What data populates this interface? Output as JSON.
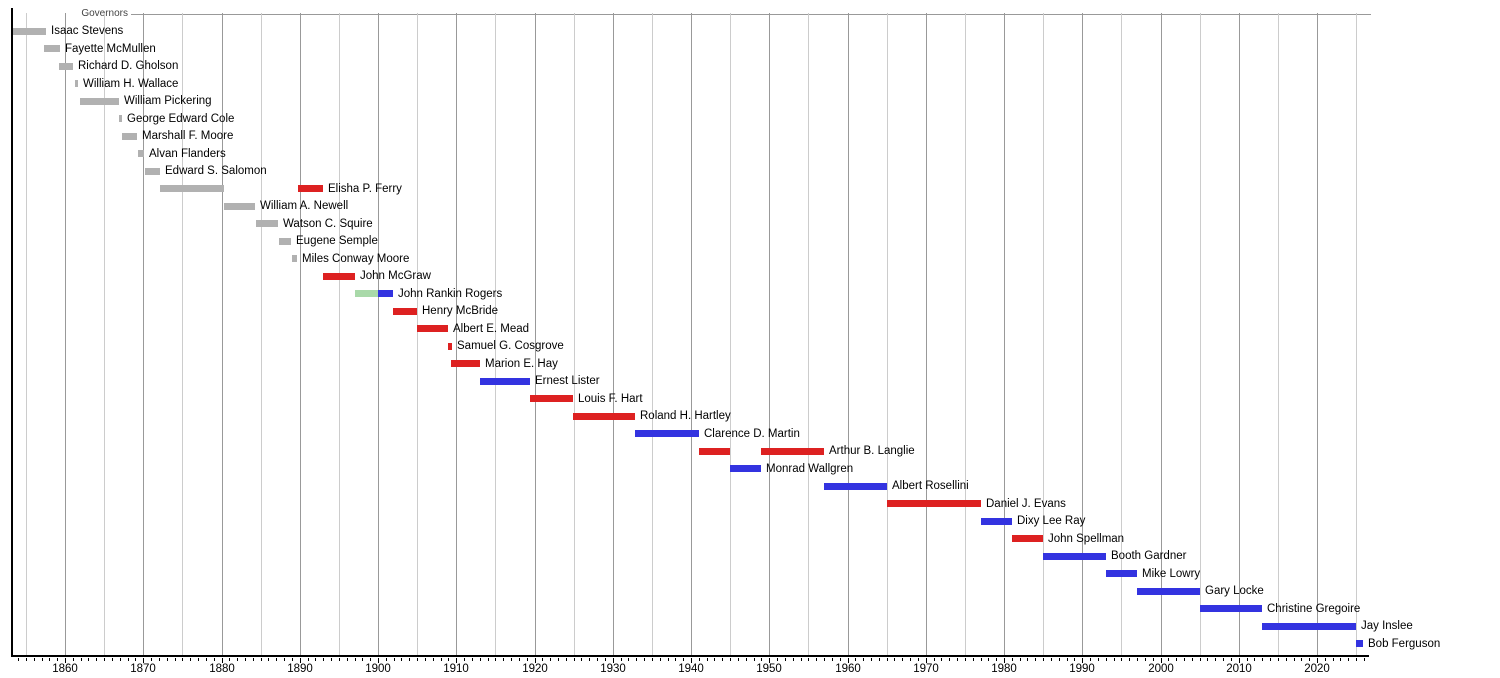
{
  "chart_data": {
    "type": "timeline",
    "title": "Governors",
    "xlim": [
      1853.2,
      2026.6
    ],
    "x_tick_labels": [
      "1860",
      "1870",
      "1880",
      "1890",
      "1900",
      "1910",
      "1920",
      "1930",
      "1940",
      "1950",
      "1960",
      "1970",
      "1980",
      "1990",
      "2000",
      "2010",
      "2020"
    ],
    "x_tick_years": [
      1860,
      1870,
      1880,
      1890,
      1900,
      1910,
      1920,
      1930,
      1940,
      1950,
      1960,
      1970,
      1980,
      1990,
      2000,
      2010,
      2020
    ],
    "minor_tick_step": 1,
    "gridline_step": 5,
    "legend_position": "top-left",
    "grid": true,
    "party_colors": {
      "territorial": "#b1b1b1",
      "republican": "#dd2121",
      "democrat": "#3333e0",
      "populist": "#a9d9a9"
    },
    "grid_colors": {
      "major": "#999999",
      "minor": "#cccccc"
    },
    "rows": [
      {
        "name": "Isaac Stevens",
        "segments": [
          {
            "start": 1853.3,
            "end": 1857.6,
            "party": "territorial"
          }
        ]
      },
      {
        "name": "Fayette McMullen",
        "segments": [
          {
            "start": 1857.3,
            "end": 1859.4,
            "party": "territorial"
          }
        ]
      },
      {
        "name": "Richard D. Gholson",
        "segments": [
          {
            "start": 1859.2,
            "end": 1861.0,
            "party": "territorial"
          }
        ]
      },
      {
        "name": "William H. Wallace",
        "segments": [
          {
            "start": 1861.3,
            "end": 1861.7,
            "party": "territorial"
          }
        ]
      },
      {
        "name": "William Pickering",
        "segments": [
          {
            "start": 1861.9,
            "end": 1866.9,
            "party": "territorial"
          }
        ]
      },
      {
        "name": "George Edward Cole",
        "segments": [
          {
            "start": 1866.9,
            "end": 1867.3,
            "party": "territorial"
          }
        ]
      },
      {
        "name": "Marshall F. Moore",
        "segments": [
          {
            "start": 1867.3,
            "end": 1869.2,
            "party": "territorial"
          }
        ]
      },
      {
        "name": "Alvan Flanders",
        "segments": [
          {
            "start": 1869.3,
            "end": 1870.1,
            "party": "territorial"
          }
        ]
      },
      {
        "name": "Edward S. Salomon",
        "segments": [
          {
            "start": 1870.2,
            "end": 1872.1,
            "party": "territorial"
          }
        ]
      },
      {
        "name": "Elisha P. Ferry",
        "segments": [
          {
            "start": 1872.1,
            "end": 1880.3,
            "party": "territorial"
          },
          {
            "start": 1889.8,
            "end": 1893.0,
            "party": "republican"
          }
        ]
      },
      {
        "name": "William A. Newell",
        "segments": [
          {
            "start": 1880.3,
            "end": 1884.3,
            "party": "territorial"
          }
        ]
      },
      {
        "name": "Watson C. Squire",
        "segments": [
          {
            "start": 1884.4,
            "end": 1887.2,
            "party": "territorial"
          }
        ]
      },
      {
        "name": "Eugene Semple",
        "segments": [
          {
            "start": 1887.3,
            "end": 1888.9,
            "party": "territorial"
          }
        ]
      },
      {
        "name": "Miles Conway Moore",
        "segments": [
          {
            "start": 1889.0,
            "end": 1889.6,
            "party": "territorial"
          }
        ]
      },
      {
        "name": "John McGraw",
        "segments": [
          {
            "start": 1893.0,
            "end": 1897.0,
            "party": "republican"
          }
        ]
      },
      {
        "name": "John Rankin Rogers",
        "segments": [
          {
            "start": 1897.0,
            "end": 1900.0,
            "party": "populist"
          },
          {
            "start": 1900.0,
            "end": 1901.9,
            "party": "democrat"
          }
        ]
      },
      {
        "name": "Henry McBride",
        "segments": [
          {
            "start": 1901.9,
            "end": 1905.0,
            "party": "republican"
          }
        ]
      },
      {
        "name": "Albert E. Mead",
        "segments": [
          {
            "start": 1905.0,
            "end": 1909.0,
            "party": "republican"
          }
        ]
      },
      {
        "name": "Samuel G. Cosgrove",
        "segments": [
          {
            "start": 1909.0,
            "end": 1909.4,
            "party": "republican"
          }
        ]
      },
      {
        "name": "Marion E. Hay",
        "segments": [
          {
            "start": 1909.3,
            "end": 1913.0,
            "party": "republican"
          }
        ]
      },
      {
        "name": "Ernest Lister",
        "segments": [
          {
            "start": 1913.0,
            "end": 1919.4,
            "party": "democrat"
          }
        ]
      },
      {
        "name": "Louis F. Hart",
        "segments": [
          {
            "start": 1919.4,
            "end": 1924.9,
            "party": "republican"
          }
        ]
      },
      {
        "name": "Roland H. Hartley",
        "segments": [
          {
            "start": 1924.9,
            "end": 1932.9,
            "party": "republican"
          }
        ]
      },
      {
        "name": "Clarence D. Martin",
        "segments": [
          {
            "start": 1932.9,
            "end": 1941.0,
            "party": "democrat"
          }
        ]
      },
      {
        "name": "Arthur B. Langlie",
        "segments": [
          {
            "start": 1941.0,
            "end": 1945.0,
            "party": "republican"
          },
          {
            "start": 1948.9,
            "end": 1957.0,
            "party": "republican"
          }
        ]
      },
      {
        "name": "Monrad Wallgren",
        "segments": [
          {
            "start": 1945.0,
            "end": 1948.9,
            "party": "democrat"
          }
        ]
      },
      {
        "name": "Albert Rosellini",
        "segments": [
          {
            "start": 1957.0,
            "end": 1965.0,
            "party": "democrat"
          }
        ]
      },
      {
        "name": "Daniel J. Evans",
        "segments": [
          {
            "start": 1965.0,
            "end": 1977.0,
            "party": "republican"
          }
        ]
      },
      {
        "name": "Dixy Lee Ray",
        "segments": [
          {
            "start": 1977.0,
            "end": 1981.0,
            "party": "democrat"
          }
        ]
      },
      {
        "name": "John Spellman",
        "segments": [
          {
            "start": 1981.0,
            "end": 1985.0,
            "party": "republican"
          }
        ]
      },
      {
        "name": "Booth Gardner",
        "segments": [
          {
            "start": 1985.0,
            "end": 1993.0,
            "party": "democrat"
          }
        ]
      },
      {
        "name": "Mike Lowry",
        "segments": [
          {
            "start": 1993.0,
            "end": 1997.0,
            "party": "democrat"
          }
        ]
      },
      {
        "name": "Gary Locke",
        "segments": [
          {
            "start": 1997.0,
            "end": 2005.0,
            "party": "democrat"
          }
        ]
      },
      {
        "name": "Christine Gregoire",
        "segments": [
          {
            "start": 2005.0,
            "end": 2013.0,
            "party": "democrat"
          }
        ]
      },
      {
        "name": "Jay Inslee",
        "segments": [
          {
            "start": 2013.0,
            "end": 2025.0,
            "party": "democrat"
          }
        ]
      },
      {
        "name": "Bob Ferguson",
        "segments": [
          {
            "start": 2025.0,
            "end": 2025.9,
            "party": "democrat"
          }
        ]
      }
    ]
  }
}
